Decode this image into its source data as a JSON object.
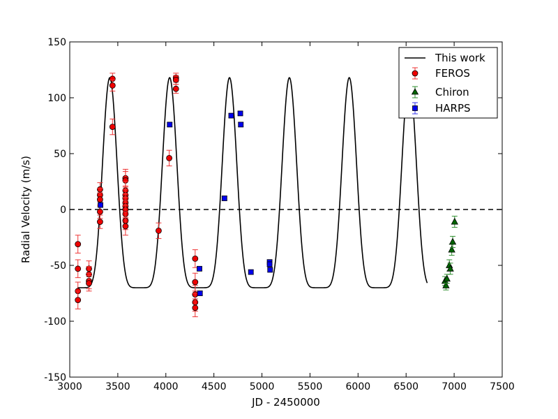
{
  "chart_data": {
    "type": "scatter",
    "title": "",
    "xlabel": "JD - 2450000",
    "ylabel": "Radial Velocity (m/s)",
    "xlim": [
      3000,
      7500
    ],
    "ylim": [
      -150,
      150
    ],
    "xticks": [
      3000,
      3500,
      4000,
      4500,
      5000,
      5500,
      6000,
      6500,
      7000,
      7500
    ],
    "yticks": [
      -150,
      -100,
      -50,
      0,
      50,
      100,
      150
    ],
    "grid": false,
    "legend_position": "top-right",
    "reference_line": {
      "y": 0,
      "style": "dashed"
    },
    "model": {
      "name": "This work",
      "type": "line",
      "color": "#000000",
      "period": 623,
      "min_time": 3105,
      "min_value": -70,
      "max_value": 118,
      "x_range": [
        3080,
        6720
      ]
    },
    "series": [
      {
        "name": "FEROS",
        "marker": "circle",
        "color": "#ee0000",
        "errcolor": "#ee3333",
        "points": [
          {
            "x": 3085,
            "y": -31,
            "err": 8
          },
          {
            "x": 3085,
            "y": -53,
            "err": 8
          },
          {
            "x": 3085,
            "y": -73,
            "err": 8
          },
          {
            "x": 3085,
            "y": -81,
            "err": 8
          },
          {
            "x": 3200,
            "y": -53,
            "err": 7
          },
          {
            "x": 3200,
            "y": -58,
            "err": 7
          },
          {
            "x": 3200,
            "y": -64,
            "err": 7
          },
          {
            "x": 3200,
            "y": -66,
            "err": 7
          },
          {
            "x": 3315,
            "y": 18,
            "err": 6
          },
          {
            "x": 3315,
            "y": 13,
            "err": 6
          },
          {
            "x": 3315,
            "y": 9,
            "err": 6
          },
          {
            "x": 3315,
            "y": -2,
            "err": 6
          },
          {
            "x": 3315,
            "y": -11,
            "err": 6
          },
          {
            "x": 3445,
            "y": 117,
            "err": 5
          },
          {
            "x": 3445,
            "y": 111,
            "err": 5
          },
          {
            "x": 3445,
            "y": 74,
            "err": 7
          },
          {
            "x": 3580,
            "y": 28,
            "err": 8
          },
          {
            "x": 3580,
            "y": 26,
            "err": 8
          },
          {
            "x": 3580,
            "y": 17,
            "err": 8
          },
          {
            "x": 3580,
            "y": 13,
            "err": 8
          },
          {
            "x": 3580,
            "y": 10,
            "err": 8
          },
          {
            "x": 3580,
            "y": 6,
            "err": 8
          },
          {
            "x": 3580,
            "y": 3,
            "err": 8
          },
          {
            "x": 3580,
            "y": 0,
            "err": 8
          },
          {
            "x": 3580,
            "y": -4,
            "err": 8
          },
          {
            "x": 3580,
            "y": -10,
            "err": 8
          },
          {
            "x": 3580,
            "y": -15,
            "err": 8
          },
          {
            "x": 3925,
            "y": -19,
            "err": 7
          },
          {
            "x": 4035,
            "y": 46,
            "err": 7
          },
          {
            "x": 4105,
            "y": 118,
            "err": 4
          },
          {
            "x": 4105,
            "y": 116,
            "err": 4
          },
          {
            "x": 4105,
            "y": 108,
            "err": 4
          },
          {
            "x": 4305,
            "y": -44,
            "err": 8
          },
          {
            "x": 4305,
            "y": -65,
            "err": 8
          },
          {
            "x": 4305,
            "y": -76,
            "err": 8
          },
          {
            "x": 4305,
            "y": -83,
            "err": 8
          },
          {
            "x": 4305,
            "y": -88,
            "err": 8
          }
        ]
      },
      {
        "name": "Chiron",
        "marker": "triangle",
        "color": "#006400",
        "errcolor": "#2f8f2f",
        "points": [
          {
            "x": 6905,
            "y": -64,
            "err": 4
          },
          {
            "x": 6915,
            "y": -68,
            "err": 4
          },
          {
            "x": 6925,
            "y": -62,
            "err": 4
          },
          {
            "x": 6950,
            "y": -50,
            "err": 5
          },
          {
            "x": 6960,
            "y": -53,
            "err": 5
          },
          {
            "x": 6975,
            "y": -36,
            "err": 5
          },
          {
            "x": 6985,
            "y": -29,
            "err": 5
          },
          {
            "x": 7005,
            "y": -11,
            "err": 5
          }
        ]
      },
      {
        "name": "HARPS",
        "marker": "square",
        "color": "#0000ee",
        "errcolor": "#3333ee",
        "points": [
          {
            "x": 3320,
            "y": 4,
            "err": 2
          },
          {
            "x": 4040,
            "y": 76,
            "err": 2
          },
          {
            "x": 4350,
            "y": -53,
            "err": 2
          },
          {
            "x": 4355,
            "y": -75,
            "err": 2
          },
          {
            "x": 4610,
            "y": 10,
            "err": 2
          },
          {
            "x": 4680,
            "y": 84,
            "err": 2
          },
          {
            "x": 4775,
            "y": 86,
            "err": 2
          },
          {
            "x": 4780,
            "y": 76,
            "err": 2
          },
          {
            "x": 4885,
            "y": -56,
            "err": 2
          },
          {
            "x": 5080,
            "y": -47,
            "err": 2
          },
          {
            "x": 5080,
            "y": -49,
            "err": 2
          },
          {
            "x": 5085,
            "y": -54,
            "err": 2
          }
        ]
      }
    ]
  }
}
